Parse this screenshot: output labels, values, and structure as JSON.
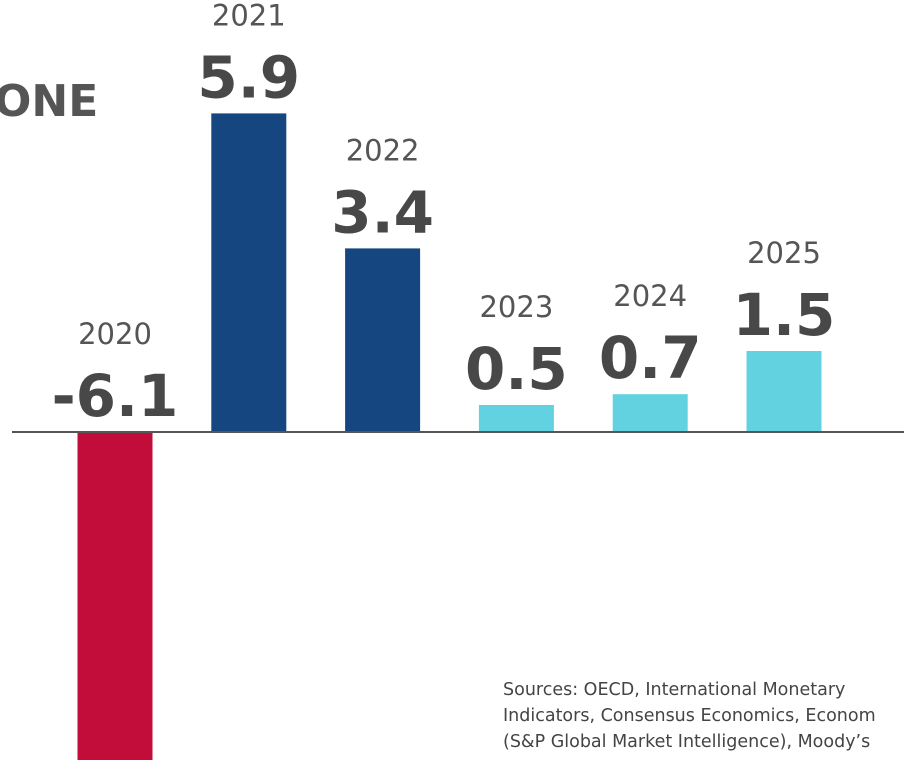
{
  "chart_data": {
    "type": "bar",
    "title": "ONE",
    "categories": [
      "2020",
      "2021",
      "2022",
      "2023",
      "2024",
      "2025"
    ],
    "values": [
      -6.1,
      5.9,
      3.4,
      0.5,
      0.7,
      1.5
    ],
    "colors": [
      "#c20c3a",
      "#15467f",
      "#15467f",
      "#62d1e0",
      "#62d1e0",
      "#62d1e0"
    ],
    "notes": [
      "Sources: OECD, International Monetary",
      "Indicators, Consensus Economics, Econom",
      "(S&P Global Market Intelligence), Moody’s"
    ]
  }
}
